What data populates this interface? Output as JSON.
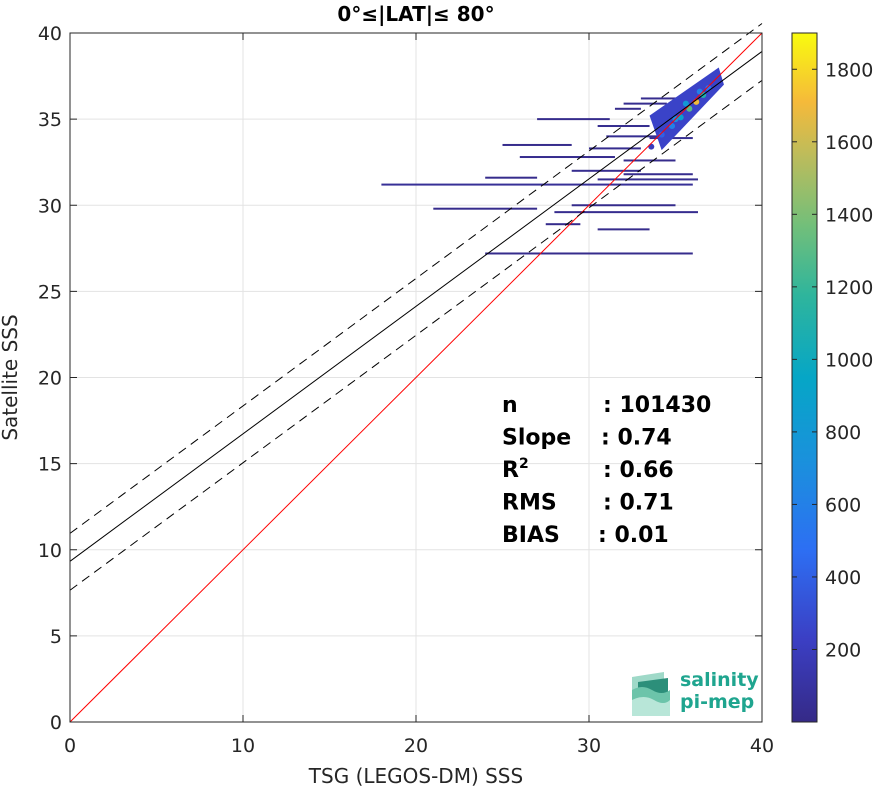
{
  "chart_data": {
    "type": "scatter",
    "title": "0°≤|LAT|≤ 80°",
    "xlabel": "TSG (LEGOS-DM) SSS",
    "ylabel": "Satellite SSS",
    "xlim": [
      0,
      40
    ],
    "ylim": [
      0,
      40
    ],
    "xticks": [
      "0",
      "10",
      "20",
      "30",
      "40"
    ],
    "yticks": [
      "0",
      "5",
      "10",
      "15",
      "20",
      "25",
      "30",
      "35",
      "40"
    ],
    "grid": true,
    "colorbar": {
      "range": [
        0,
        1900
      ],
      "ticks": [
        "200",
        "400",
        "600",
        "800",
        "1000",
        "1200",
        "1400",
        "1600",
        "1800"
      ],
      "colormap": "parula"
    },
    "lines": [
      {
        "style": "solid",
        "color": "#ff0000",
        "x": [
          0,
          40
        ],
        "y": [
          0,
          40
        ]
      },
      {
        "style": "solid",
        "color": "#000000",
        "x": [
          0,
          40
        ],
        "y": [
          9.33,
          38.93
        ]
      },
      {
        "style": "dashed",
        "color": "#000000",
        "x": [
          0,
          40
        ],
        "y": [
          10.95,
          40.55
        ]
      },
      {
        "style": "dashed",
        "color": "#000000",
        "x": [
          0,
          40
        ],
        "y": [
          7.65,
          37.25
        ]
      }
    ],
    "density_points": [
      {
        "x": 34.2,
        "y": 34.1,
        "c": 400
      },
      {
        "x": 34.8,
        "y": 34.6,
        "c": 600
      },
      {
        "x": 35.3,
        "y": 35.1,
        "c": 900
      },
      {
        "x": 35.8,
        "y": 35.6,
        "c": 1300
      },
      {
        "x": 36.2,
        "y": 36.0,
        "c": 1700
      },
      {
        "x": 36.6,
        "y": 36.4,
        "c": 1100
      },
      {
        "x": 35.0,
        "y": 35.0,
        "c": 700
      },
      {
        "x": 36.9,
        "y": 36.8,
        "c": 500
      },
      {
        "x": 37.2,
        "y": 37.3,
        "c": 250
      },
      {
        "x": 33.6,
        "y": 33.4,
        "c": 200
      },
      {
        "x": 35.6,
        "y": 35.9,
        "c": 800
      },
      {
        "x": 36.4,
        "y": 36.6,
        "c": 600
      }
    ],
    "streaks": [
      {
        "x0": 33.0,
        "x1": 35.5,
        "y": 36.2,
        "c": 30
      },
      {
        "x0": 32.0,
        "x1": 34.5,
        "y": 35.9,
        "c": 30
      },
      {
        "x0": 31.5,
        "x1": 33.0,
        "y": 35.6,
        "c": 20
      },
      {
        "x0": 27.0,
        "x1": 31.2,
        "y": 35.0,
        "c": 20
      },
      {
        "x0": 30.5,
        "x1": 33.5,
        "y": 34.6,
        "c": 30
      },
      {
        "x0": 31.0,
        "x1": 34.2,
        "y": 34.0,
        "c": 40
      },
      {
        "x0": 25.0,
        "x1": 29.0,
        "y": 33.5,
        "c": 20
      },
      {
        "x0": 30.0,
        "x1": 33.0,
        "y": 33.3,
        "c": 30
      },
      {
        "x0": 26.0,
        "x1": 31.5,
        "y": 32.8,
        "c": 25
      },
      {
        "x0": 32.0,
        "x1": 35.0,
        "y": 32.6,
        "c": 20
      },
      {
        "x0": 29.0,
        "x1": 33.0,
        "y": 32.0,
        "c": 30
      },
      {
        "x0": 32.0,
        "x1": 36.0,
        "y": 31.8,
        "c": 25
      },
      {
        "x0": 18.0,
        "x1": 36.0,
        "y": 31.2,
        "c": 60
      },
      {
        "x0": 24.0,
        "x1": 27.0,
        "y": 31.6,
        "c": 20
      },
      {
        "x0": 30.5,
        "x1": 36.3,
        "y": 31.5,
        "c": 30
      },
      {
        "x0": 21.0,
        "x1": 27.0,
        "y": 29.8,
        "c": 20
      },
      {
        "x0": 28.0,
        "x1": 36.3,
        "y": 29.6,
        "c": 25
      },
      {
        "x0": 27.5,
        "x1": 29.5,
        "y": 28.9,
        "c": 15
      },
      {
        "x0": 30.5,
        "x1": 33.5,
        "y": 28.6,
        "c": 20
      },
      {
        "x0": 24.0,
        "x1": 36.0,
        "y": 27.2,
        "c": 20
      },
      {
        "x0": 29.0,
        "x1": 35.0,
        "y": 30.0,
        "c": 15
      },
      {
        "x0": 33.5,
        "x1": 36.0,
        "y": 33.9,
        "c": 40
      }
    ],
    "stats": [
      {
        "label": "n",
        "value": ": 101430"
      },
      {
        "label": "Slope",
        "value": ": 0.74"
      },
      {
        "label": "R",
        "sup": "2",
        "value": ": 0.66"
      },
      {
        "label": "RMS",
        "value": ": 0.71"
      },
      {
        "label": "BIAS",
        "value": ": 0.01"
      }
    ]
  },
  "logo": {
    "line1": "salinity",
    "line2": "pi-mep"
  }
}
